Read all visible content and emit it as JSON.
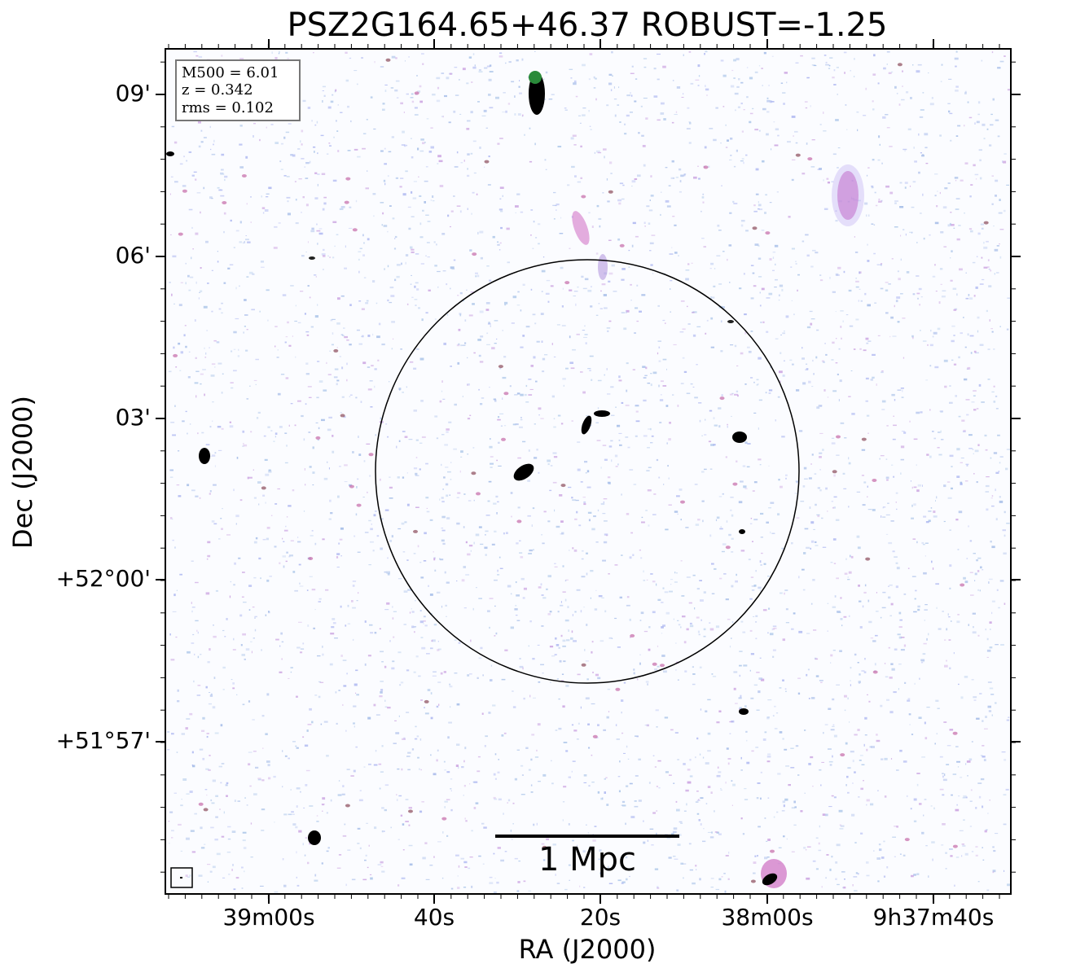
{
  "title": "PSZ2G164.65+46.37 ROBUST=-1.25",
  "x_axis": {
    "label": "RA (J2000)",
    "ticks": [
      "39m00s",
      "40s",
      "20s",
      "38m00s",
      "9h37m40s"
    ]
  },
  "y_axis": {
    "label": "Dec (J2000)",
    "ticks": [
      "09'",
      "06'",
      "03'",
      "+52°00'",
      "+51°57'"
    ]
  },
  "info_box": {
    "lines": [
      "M500 = 6.01",
      "z = 0.342",
      "rms = 0.102"
    ]
  },
  "scale_bar": {
    "label": "1 Mpc"
  }
}
